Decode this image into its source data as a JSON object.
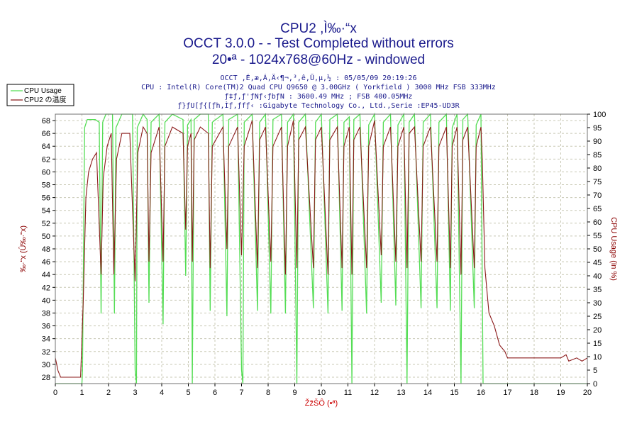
{
  "titles": {
    "line1": "CPU2 ,Ì‰·“x",
    "line2": "OCCT 3.0.0 -  - Test Completed without errors",
    "line3": "20•ª - 1024x768@60Hz - windowed"
  },
  "info": {
    "line1": "OCCT ,É,æ,Á,Ä‹¶¬,³,ê,Ü,µ,½ : 05/05/09 20:19:26",
    "line2": "CPU : Intel(R) Core(TM)2 Quad CPU Q9650 @ 3.00GHz ( Yorkfield ) 3000 MHz FSB 333MHz",
    "line3": "ƒ‡ƒ‚ƒ'ƒNƒ‹ƒbƒN : 3600.49 MHz ; FSB 400.05MHz",
    "line4": "ƒ}ƒU[ƒ{[ƒh,Ìƒ‚ƒfƒ‹ :Gigabyte Technology Co., Ltd.,Serie :EP45-UD3R"
  },
  "legend": {
    "items": [
      {
        "label": "CPU Usage",
        "color": "#55dd55"
      },
      {
        "label": "CPU2 の温度",
        "color": "#8b1a1a"
      }
    ]
  },
  "colors": {
    "usage": "#55dd55",
    "temp": "#8b1a1a",
    "grid": "#c8c8b4",
    "frame": "#707070"
  },
  "chart_data": {
    "type": "line",
    "title": "CPU2 ,Ì‰·“x",
    "xlabel": "ŽžŠÔ (•ª)",
    "ylabel_left": "‰·“x (Û‰·“x)",
    "ylabel_right": "CPU Usage (in %)",
    "xlim": [
      0,
      20
    ],
    "ylim_left": [
      27,
      69
    ],
    "ylim_right": [
      0,
      100
    ],
    "x_ticks": [
      "0",
      "1",
      "2",
      "3",
      "4",
      "5",
      "6",
      "7",
      "8",
      "9",
      "10",
      "11",
      "12",
      "13",
      "14",
      "15",
      "16",
      "17",
      "18",
      "19",
      "20"
    ],
    "y_left_ticks": [
      "28",
      "30",
      "32",
      "34",
      "36",
      "38",
      "40",
      "42",
      "44",
      "46",
      "48",
      "50",
      "52",
      "54",
      "56",
      "58",
      "60",
      "62",
      "64",
      "66",
      "68"
    ],
    "y_right_ticks": [
      "0",
      "5",
      "10",
      "15",
      "20",
      "25",
      "30",
      "35",
      "40",
      "45",
      "50",
      "55",
      "60",
      "65",
      "70",
      "75",
      "80",
      "85",
      "90",
      "95",
      "100"
    ],
    "legend_position": "top-left",
    "grid": true,
    "series": [
      {
        "name": "CPU Usage",
        "axis": "right",
        "points": [
          [
            0,
            0
          ],
          [
            1.0,
            0
          ],
          [
            1.02,
            5
          ],
          [
            1.1,
            95
          ],
          [
            1.2,
            98
          ],
          [
            1.5,
            98
          ],
          [
            1.65,
            97
          ],
          [
            1.72,
            26
          ],
          [
            1.78,
            97
          ],
          [
            1.9,
            100
          ],
          [
            2.15,
            100
          ],
          [
            2.22,
            26
          ],
          [
            2.28,
            95
          ],
          [
            2.5,
            100
          ],
          [
            2.9,
            100
          ],
          [
            3.0,
            5
          ],
          [
            3.05,
            0
          ],
          [
            3.08,
            95
          ],
          [
            3.3,
            100
          ],
          [
            3.45,
            98
          ],
          [
            3.52,
            30
          ],
          [
            3.6,
            97
          ],
          [
            3.9,
            100
          ],
          [
            4.05,
            22
          ],
          [
            4.12,
            97
          ],
          [
            4.4,
            100
          ],
          [
            4.8,
            98
          ],
          [
            4.9,
            40
          ],
          [
            4.97,
            96
          ],
          [
            5.1,
            98
          ],
          [
            5.15,
            0
          ],
          [
            5.22,
            98
          ],
          [
            5.45,
            100
          ],
          [
            5.75,
            100
          ],
          [
            5.82,
            27
          ],
          [
            5.9,
            97
          ],
          [
            6.3,
            100
          ],
          [
            6.45,
            25
          ],
          [
            6.52,
            98
          ],
          [
            6.85,
            100
          ],
          [
            7.0,
            5
          ],
          [
            7.05,
            0
          ],
          [
            7.1,
            97
          ],
          [
            7.4,
            100
          ],
          [
            7.6,
            27
          ],
          [
            7.68,
            97
          ],
          [
            7.9,
            100
          ],
          [
            8.1,
            26
          ],
          [
            8.18,
            98
          ],
          [
            8.5,
            100
          ],
          [
            8.65,
            26
          ],
          [
            8.73,
            97
          ],
          [
            8.95,
            100
          ],
          [
            9.08,
            0
          ],
          [
            9.15,
            97
          ],
          [
            9.4,
            100
          ],
          [
            9.7,
            28
          ],
          [
            9.78,
            97
          ],
          [
            10.0,
            100
          ],
          [
            10.25,
            26
          ],
          [
            10.32,
            98
          ],
          [
            10.6,
            100
          ],
          [
            10.78,
            27
          ],
          [
            10.85,
            97
          ],
          [
            11.05,
            99
          ],
          [
            11.15,
            0
          ],
          [
            11.22,
            98
          ],
          [
            11.45,
            100
          ],
          [
            11.7,
            26
          ],
          [
            11.78,
            96
          ],
          [
            12.0,
            100
          ],
          [
            12.25,
            30
          ],
          [
            12.33,
            97
          ],
          [
            12.6,
            100
          ],
          [
            12.8,
            29
          ],
          [
            12.88,
            96
          ],
          [
            13.1,
            100
          ],
          [
            13.22,
            0
          ],
          [
            13.3,
            97
          ],
          [
            13.5,
            100
          ],
          [
            13.75,
            28
          ],
          [
            13.83,
            97
          ],
          [
            14.1,
            100
          ],
          [
            14.35,
            28
          ],
          [
            14.42,
            97
          ],
          [
            14.7,
            100
          ],
          [
            14.85,
            27
          ],
          [
            14.92,
            95
          ],
          [
            15.1,
            100
          ],
          [
            15.25,
            0
          ],
          [
            15.32,
            98
          ],
          [
            15.5,
            100
          ],
          [
            15.75,
            28
          ],
          [
            15.82,
            96
          ],
          [
            16.0,
            100
          ],
          [
            16.08,
            0
          ],
          [
            20,
            0
          ]
        ]
      },
      {
        "name": "CPU2 の温度",
        "axis": "left",
        "points": [
          [
            0,
            31
          ],
          [
            0.1,
            29
          ],
          [
            0.2,
            28
          ],
          [
            0.4,
            28
          ],
          [
            0.95,
            28
          ],
          [
            1.05,
            40
          ],
          [
            1.15,
            56
          ],
          [
            1.25,
            60
          ],
          [
            1.4,
            62
          ],
          [
            1.55,
            63
          ],
          [
            1.72,
            44
          ],
          [
            1.8,
            59
          ],
          [
            1.95,
            64
          ],
          [
            2.1,
            66
          ],
          [
            2.2,
            44
          ],
          [
            2.3,
            62
          ],
          [
            2.5,
            66
          ],
          [
            2.8,
            66
          ],
          [
            3.0,
            43
          ],
          [
            3.1,
            63
          ],
          [
            3.3,
            67
          ],
          [
            3.45,
            66
          ],
          [
            3.52,
            46
          ],
          [
            3.6,
            63
          ],
          [
            3.9,
            67
          ],
          [
            4.05,
            46
          ],
          [
            4.12,
            64
          ],
          [
            4.4,
            67
          ],
          [
            4.8,
            66
          ],
          [
            4.9,
            51
          ],
          [
            4.97,
            64
          ],
          [
            5.1,
            66
          ],
          [
            5.15,
            46
          ],
          [
            5.22,
            65
          ],
          [
            5.45,
            67
          ],
          [
            5.75,
            66
          ],
          [
            5.82,
            45
          ],
          [
            5.9,
            64
          ],
          [
            6.3,
            67
          ],
          [
            6.45,
            48
          ],
          [
            6.52,
            64
          ],
          [
            6.85,
            67
          ],
          [
            7.0,
            47
          ],
          [
            7.1,
            64
          ],
          [
            7.4,
            68
          ],
          [
            7.6,
            45
          ],
          [
            7.68,
            65
          ],
          [
            7.9,
            67
          ],
          [
            8.1,
            46
          ],
          [
            8.18,
            64
          ],
          [
            8.5,
            67
          ],
          [
            8.65,
            44
          ],
          [
            8.73,
            64
          ],
          [
            8.95,
            68
          ],
          [
            9.08,
            45
          ],
          [
            9.15,
            65
          ],
          [
            9.4,
            67
          ],
          [
            9.7,
            45
          ],
          [
            9.78,
            65
          ],
          [
            10.0,
            67
          ],
          [
            10.25,
            44
          ],
          [
            10.32,
            65
          ],
          [
            10.6,
            67
          ],
          [
            10.78,
            45
          ],
          [
            10.85,
            64
          ],
          [
            11.05,
            67
          ],
          [
            11.15,
            44
          ],
          [
            11.22,
            65
          ],
          [
            11.45,
            67
          ],
          [
            11.7,
            45
          ],
          [
            11.78,
            64
          ],
          [
            12.0,
            68
          ],
          [
            12.25,
            47
          ],
          [
            12.33,
            64
          ],
          [
            12.6,
            67
          ],
          [
            12.8,
            46
          ],
          [
            12.88,
            64
          ],
          [
            13.1,
            67
          ],
          [
            13.22,
            45
          ],
          [
            13.3,
            66
          ],
          [
            13.5,
            67
          ],
          [
            13.75,
            46
          ],
          [
            13.83,
            64
          ],
          [
            14.1,
            67
          ],
          [
            14.35,
            46
          ],
          [
            14.42,
            64
          ],
          [
            14.7,
            67
          ],
          [
            14.85,
            45
          ],
          [
            14.92,
            64
          ],
          [
            15.1,
            67
          ],
          [
            15.25,
            44
          ],
          [
            15.32,
            65
          ],
          [
            15.5,
            67
          ],
          [
            15.75,
            45
          ],
          [
            15.82,
            64
          ],
          [
            16.0,
            67
          ],
          [
            16.05,
            62
          ],
          [
            16.15,
            45
          ],
          [
            16.3,
            38
          ],
          [
            16.5,
            36
          ],
          [
            16.7,
            33
          ],
          [
            16.9,
            32
          ],
          [
            17.0,
            31
          ],
          [
            17.5,
            31
          ],
          [
            18.0,
            31
          ],
          [
            18.5,
            31
          ],
          [
            19.0,
            31
          ],
          [
            19.2,
            31.5
          ],
          [
            19.3,
            30.5
          ],
          [
            19.6,
            31
          ],
          [
            19.8,
            30.5
          ],
          [
            20,
            31
          ]
        ]
      }
    ]
  }
}
